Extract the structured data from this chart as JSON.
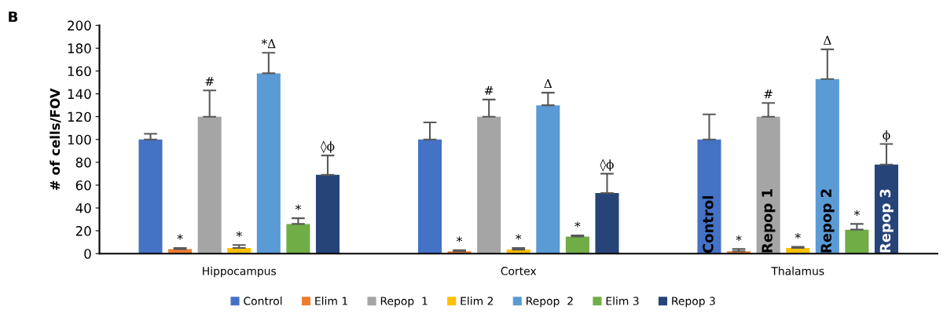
{
  "chart_data": {
    "type": "bar",
    "ylabel": "# of cells/FOV",
    "categories": [
      "Hippocampus",
      "Cortex",
      "Thalamus"
    ],
    "series": [
      {
        "name": "Control",
        "color": "#4472c4",
        "values": [
          100,
          100,
          100
        ],
        "errors": [
          [
            100,
            105
          ],
          [
            100,
            115
          ],
          [
            100,
            122
          ]
        ],
        "value_labels": [
          null,
          null,
          null
        ]
      },
      {
        "name": "Elim 1",
        "color": "#ed7d31",
        "values": [
          4,
          2,
          2
        ],
        "errors": [
          [
            4,
            5
          ],
          [
            2,
            3
          ],
          [
            2,
            4
          ]
        ],
        "value_labels": [
          "*",
          "*",
          "*"
        ]
      },
      {
        "name": "Repop  1",
        "color": "#a5a5a5",
        "values": [
          120,
          120,
          120
        ],
        "errors": [
          [
            120,
            143
          ],
          [
            120,
            135
          ],
          [
            120,
            132
          ]
        ],
        "value_labels": [
          "#",
          "#",
          "#"
        ]
      },
      {
        "name": "Elim 2",
        "color": "#ffc000",
        "values": [
          5,
          3.5,
          5
        ],
        "errors": [
          [
            5,
            7.5
          ],
          [
            3.5,
            5
          ],
          [
            5,
            6
          ]
        ],
        "value_labels": [
          "*",
          "*",
          "*"
        ]
      },
      {
        "name": "Repop  2",
        "color": "#5b9bd5",
        "values": [
          158,
          130,
          153
        ],
        "errors": [
          [
            158,
            176
          ],
          [
            130,
            141
          ],
          [
            153,
            179
          ]
        ],
        "value_labels": [
          "*Δ",
          "Δ",
          "Δ"
        ]
      },
      {
        "name": "Elim 3",
        "color": "#70ad47",
        "values": [
          26,
          15,
          21
        ],
        "errors": [
          [
            26,
            31
          ],
          [
            15,
            16
          ],
          [
            21,
            26
          ]
        ],
        "value_labels": [
          "*",
          "*",
          "*"
        ]
      },
      {
        "name": "Repop 3",
        "color": "#264478",
        "values": [
          69,
          53,
          78
        ],
        "errors": [
          [
            69,
            86
          ],
          [
            53,
            70
          ],
          [
            78,
            96
          ]
        ],
        "value_labels": [
          "◊ϕ",
          "◊ϕ",
          "ϕ"
        ]
      }
    ],
    "ylim": [
      0,
      200
    ],
    "yticks": [
      0,
      20,
      40,
      60,
      80,
      100,
      120,
      140,
      160,
      180,
      200
    ],
    "grid": false,
    "legend": "bottom",
    "annotations": [
      "B",
      "Control",
      "Repop 1",
      "Repop 2",
      "Repop 3"
    ]
  }
}
